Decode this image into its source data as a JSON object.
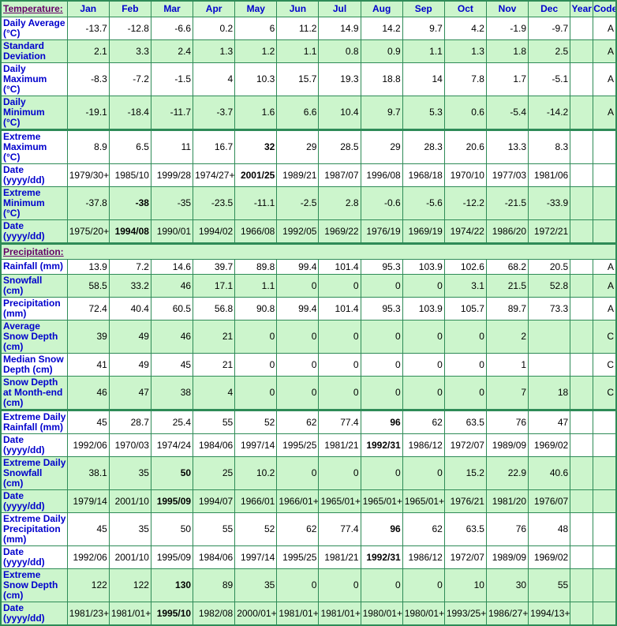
{
  "header": {
    "temperature_label": "Temperature:",
    "months": [
      "Jan",
      "Feb",
      "Mar",
      "Apr",
      "May",
      "Jun",
      "Jul",
      "Aug",
      "Sep",
      "Oct",
      "Nov",
      "Dec"
    ],
    "year_label": "Year",
    "code_label": "Code"
  },
  "colors": {
    "row_green": "#ccf5cc",
    "row_white": "#ffffff",
    "grid_border": "#2e8b57",
    "header_text_blue": "#0000cc",
    "section_link_purple": "#660066",
    "value_text": "#000000"
  },
  "rows": [
    {
      "type": "data",
      "label": "Daily Average\n(°C)",
      "shade": "white",
      "thick_top": false,
      "values": [
        "-13.7",
        "-12.8",
        "-6.6",
        "0.2",
        "6",
        "11.2",
        "14.9",
        "14.2",
        "9.7",
        "4.2",
        "-1.9",
        "-9.7"
      ],
      "year": "",
      "code": "A",
      "bold": []
    },
    {
      "type": "data",
      "label": "Standard\nDeviation",
      "shade": "green",
      "thick_top": false,
      "values": [
        "2.1",
        "3.3",
        "2.4",
        "1.3",
        "1.2",
        "1.1",
        "0.8",
        "0.9",
        "1.1",
        "1.3",
        "1.8",
        "2.5"
      ],
      "year": "",
      "code": "A",
      "bold": []
    },
    {
      "type": "data",
      "label": "Daily\nMaximum\n(°C)",
      "shade": "white",
      "thick_top": false,
      "values": [
        "-8.3",
        "-7.2",
        "-1.5",
        "4",
        "10.3",
        "15.7",
        "19.3",
        "18.8",
        "14",
        "7.8",
        "1.7",
        "-5.1"
      ],
      "year": "",
      "code": "A",
      "bold": []
    },
    {
      "type": "data",
      "label": "Daily\nMinimum\n(°C)",
      "shade": "green",
      "thick_top": false,
      "values": [
        "-19.1",
        "-18.4",
        "-11.7",
        "-3.7",
        "1.6",
        "6.6",
        "10.4",
        "9.7",
        "5.3",
        "0.6",
        "-5.4",
        "-14.2"
      ],
      "year": "",
      "code": "A",
      "bold": []
    },
    {
      "type": "data",
      "label": "Extreme\nMaximum\n(°C)",
      "shade": "white",
      "thick_top": true,
      "values": [
        "8.9",
        "6.5",
        "11",
        "16.7",
        "32",
        "29",
        "28.5",
        "29",
        "28.3",
        "20.6",
        "13.3",
        "8.3"
      ],
      "year": "",
      "code": "",
      "bold": [
        4
      ]
    },
    {
      "type": "data",
      "label": "Date\n(yyyy/dd)",
      "shade": "white",
      "thick_top": false,
      "values": [
        "1979/30+",
        "1985/10",
        "1999/28",
        "1974/27+",
        "2001/25",
        "1989/21",
        "1987/07",
        "1996/08",
        "1968/18",
        "1970/10",
        "1977/03",
        "1981/06"
      ],
      "year": "",
      "code": "",
      "bold": [
        4
      ]
    },
    {
      "type": "data",
      "label": "Extreme\nMinimum\n(°C)",
      "shade": "green",
      "thick_top": false,
      "values": [
        "-37.8",
        "-38",
        "-35",
        "-23.5",
        "-11.1",
        "-2.5",
        "2.8",
        "-0.6",
        "-5.6",
        "-12.2",
        "-21.5",
        "-33.9"
      ],
      "year": "",
      "code": "",
      "bold": [
        1
      ]
    },
    {
      "type": "data",
      "label": "Date\n(yyyy/dd)",
      "shade": "green",
      "thick_top": false,
      "values": [
        "1975/20+",
        "1994/08",
        "1990/01",
        "1994/02",
        "1966/08",
        "1992/05",
        "1969/22",
        "1976/19",
        "1969/19",
        "1974/22",
        "1986/20",
        "1972/21"
      ],
      "year": "",
      "code": "",
      "bold": [
        1
      ]
    },
    {
      "type": "section",
      "label": "Precipitation:",
      "shade": "green",
      "thick_top": true
    },
    {
      "type": "data",
      "label": "Rainfall (mm)",
      "shade": "white",
      "thick_top": false,
      "values": [
        "13.9",
        "7.2",
        "14.6",
        "39.7",
        "89.8",
        "99.4",
        "101.4",
        "95.3",
        "103.9",
        "102.6",
        "68.2",
        "20.5"
      ],
      "year": "",
      "code": "A",
      "bold": []
    },
    {
      "type": "data",
      "label": "Snowfall\n(cm)",
      "shade": "green",
      "thick_top": false,
      "values": [
        "58.5",
        "33.2",
        "46",
        "17.1",
        "1.1",
        "0",
        "0",
        "0",
        "0",
        "3.1",
        "21.5",
        "52.8"
      ],
      "year": "",
      "code": "A",
      "bold": []
    },
    {
      "type": "data",
      "label": "Precipitation\n(mm)",
      "shade": "white",
      "thick_top": false,
      "values": [
        "72.4",
        "40.4",
        "60.5",
        "56.8",
        "90.8",
        "99.4",
        "101.4",
        "95.3",
        "103.9",
        "105.7",
        "89.7",
        "73.3"
      ],
      "year": "",
      "code": "A",
      "bold": []
    },
    {
      "type": "data",
      "label": "Average\nSnow Depth\n(cm)",
      "shade": "green",
      "thick_top": false,
      "values": [
        "39",
        "49",
        "46",
        "21",
        "0",
        "0",
        "0",
        "0",
        "0",
        "0",
        "2",
        ""
      ],
      "year": "",
      "code": "C",
      "bold": []
    },
    {
      "type": "data",
      "label": "Median Snow\nDepth (cm)",
      "shade": "white",
      "thick_top": false,
      "values": [
        "41",
        "49",
        "45",
        "21",
        "0",
        "0",
        "0",
        "0",
        "0",
        "0",
        "1",
        ""
      ],
      "year": "",
      "code": "C",
      "bold": []
    },
    {
      "type": "data",
      "label": "Snow Depth\nat Month-end\n(cm)",
      "shade": "green",
      "thick_top": false,
      "values": [
        "46",
        "47",
        "38",
        "4",
        "0",
        "0",
        "0",
        "0",
        "0",
        "0",
        "7",
        "18"
      ],
      "year": "",
      "code": "C",
      "bold": []
    },
    {
      "type": "data",
      "label": "Extreme Daily\nRainfall (mm)",
      "shade": "white",
      "thick_top": true,
      "values": [
        "45",
        "28.7",
        "25.4",
        "55",
        "52",
        "62",
        "77.4",
        "96",
        "62",
        "63.5",
        "76",
        "47"
      ],
      "year": "",
      "code": "",
      "bold": [
        7
      ]
    },
    {
      "type": "data",
      "label": "Date\n(yyyy/dd)",
      "shade": "white",
      "thick_top": false,
      "values": [
        "1992/06",
        "1970/03",
        "1974/24",
        "1984/06",
        "1997/14",
        "1995/25",
        "1981/21",
        "1992/31",
        "1986/12",
        "1972/07",
        "1989/09",
        "1969/02"
      ],
      "year": "",
      "code": "",
      "bold": [
        7
      ]
    },
    {
      "type": "data",
      "label": "Extreme Daily\nSnowfall\n(cm)",
      "shade": "green",
      "thick_top": false,
      "values": [
        "38.1",
        "35",
        "50",
        "25",
        "10.2",
        "0",
        "0",
        "0",
        "0",
        "15.2",
        "22.9",
        "40.6"
      ],
      "year": "",
      "code": "",
      "bold": [
        2
      ]
    },
    {
      "type": "data",
      "label": "Date\n(yyyy/dd)",
      "shade": "green",
      "thick_top": false,
      "values": [
        "1979/14",
        "2001/10",
        "1995/09",
        "1994/07",
        "1966/01",
        "1966/01+",
        "1965/01+",
        "1965/01+",
        "1965/01+",
        "1976/21",
        "1981/20",
        "1976/07"
      ],
      "year": "",
      "code": "",
      "bold": [
        2
      ]
    },
    {
      "type": "data",
      "label": "Extreme Daily\nPrecipitation\n(mm)",
      "shade": "white",
      "thick_top": false,
      "values": [
        "45",
        "35",
        "50",
        "55",
        "52",
        "62",
        "77.4",
        "96",
        "62",
        "63.5",
        "76",
        "48"
      ],
      "year": "",
      "code": "",
      "bold": [
        7
      ]
    },
    {
      "type": "data",
      "label": "Date\n(yyyy/dd)",
      "shade": "white",
      "thick_top": false,
      "values": [
        "1992/06",
        "2001/10",
        "1995/09",
        "1984/06",
        "1997/14",
        "1995/25",
        "1981/21",
        "1992/31",
        "1986/12",
        "1972/07",
        "1989/09",
        "1969/02"
      ],
      "year": "",
      "code": "",
      "bold": [
        7
      ]
    },
    {
      "type": "data",
      "label": "Extreme\nSnow Depth\n(cm)",
      "shade": "green",
      "thick_top": false,
      "values": [
        "122",
        "122",
        "130",
        "89",
        "35",
        "0",
        "0",
        "0",
        "0",
        "10",
        "30",
        "55"
      ],
      "year": "",
      "code": "",
      "bold": [
        2
      ]
    },
    {
      "type": "data",
      "label": "Date\n(yyyy/dd)",
      "shade": "green",
      "thick_top": false,
      "values": [
        "1981/23+",
        "1981/01+",
        "1995/10",
        "1982/08",
        "2000/01+",
        "1981/01+",
        "1981/01+",
        "1980/01+",
        "1980/01+",
        "1993/25+",
        "1986/27+",
        "1994/13+"
      ],
      "year": "",
      "code": "",
      "bold": [
        2
      ]
    }
  ]
}
